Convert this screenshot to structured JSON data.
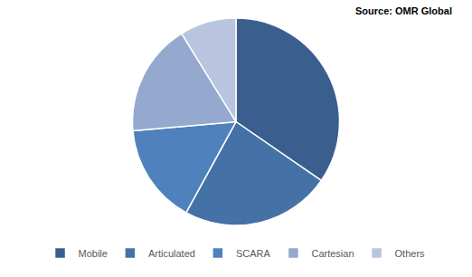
{
  "chart_data": {
    "type": "pie",
    "categories": [
      "Mobile",
      "Articulated",
      "SCARA",
      "Cartesian",
      "Others"
    ],
    "values": [
      34.6,
      23.4,
      15.6,
      17.6,
      8.8
    ],
    "colors": [
      "#3a5f8f",
      "#4572a6",
      "#4f81bd",
      "#95a9cf",
      "#b9c5de"
    ],
    "annotations": [
      "Source: OMR Global"
    ],
    "legend": "bottom",
    "data_labels": false
  }
}
